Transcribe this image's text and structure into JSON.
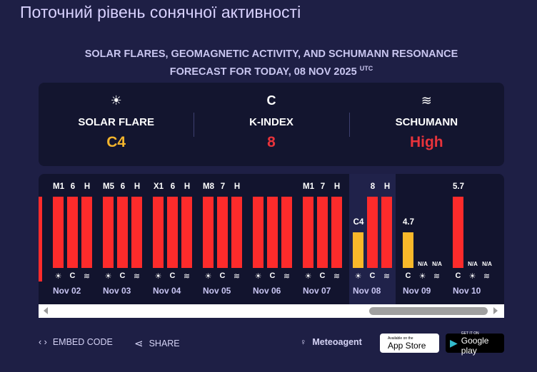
{
  "title": "Поточний рівень сонячної активності",
  "subtitle": {
    "line1": "SOLAR FLARES, GEOMAGNETIC ACTIVITY, AND SCHUMANN RESONANCE",
    "line2": "FORECAST FOR TODAY, 08 NOV 2025",
    "tz": "UTC"
  },
  "summary": [
    {
      "icon": "sun-icon",
      "label": "SOLAR FLARE",
      "value": "C4",
      "color": "#f3b42c"
    },
    {
      "icon": "magnet-icon",
      "label": "K-INDEX",
      "value": "8",
      "color": "#e8333b"
    },
    {
      "icon": "waves-icon",
      "label": "SCHUMANN",
      "value": "High",
      "color": "#e8333b"
    }
  ],
  "colors": {
    "red": "#fd2b2b",
    "yellow": "#f8b82a"
  },
  "days": [
    {
      "date": "Nov 02",
      "bars": [
        {
          "type": "sun",
          "label": "M1",
          "level": 1,
          "color": "red"
        },
        {
          "type": "magnet",
          "label": "6",
          "level": 1,
          "color": "red"
        },
        {
          "type": "waves",
          "label": "H",
          "level": 1,
          "color": "red"
        }
      ]
    },
    {
      "date": "Nov 03",
      "bars": [
        {
          "type": "sun",
          "label": "M5",
          "level": 1,
          "color": "red"
        },
        {
          "type": "magnet",
          "label": "6",
          "level": 1,
          "color": "red"
        },
        {
          "type": "waves",
          "label": "H",
          "level": 1,
          "color": "red"
        }
      ]
    },
    {
      "date": "Nov 04",
      "bars": [
        {
          "type": "sun",
          "label": "X1",
          "level": 1,
          "color": "red"
        },
        {
          "type": "magnet",
          "label": "6",
          "level": 1,
          "color": "red"
        },
        {
          "type": "waves",
          "label": "H",
          "level": 1,
          "color": "red"
        }
      ]
    },
    {
      "date": "Nov 05",
      "bars": [
        {
          "type": "sun",
          "label": "M8",
          "level": 1,
          "color": "red"
        },
        {
          "type": "magnet",
          "label": "7",
          "level": 1,
          "color": "red"
        },
        {
          "type": "waves",
          "label": "H",
          "level": 1,
          "color": "red"
        }
      ]
    },
    {
      "date": "Nov 06",
      "bars": [
        {
          "type": "sun",
          "label": "",
          "level": 1,
          "color": "red"
        },
        {
          "type": "magnet",
          "label": "",
          "level": 1,
          "color": "red"
        },
        {
          "type": "waves",
          "label": "",
          "level": 1,
          "color": "red"
        }
      ]
    },
    {
      "date": "Nov 07",
      "bars": [
        {
          "type": "sun",
          "label": "M1",
          "level": 1,
          "color": "red"
        },
        {
          "type": "magnet",
          "label": "7",
          "level": 1,
          "color": "red"
        },
        {
          "type": "waves",
          "label": "H",
          "level": 1,
          "color": "red"
        }
      ]
    },
    {
      "date": "Nov 08",
      "today": true,
      "bars": [
        {
          "type": "sun",
          "label": "C4",
          "level": 0.5,
          "color": "yellow"
        },
        {
          "type": "magnet",
          "label": "8",
          "level": 1,
          "color": "red"
        },
        {
          "type": "waves",
          "label": "H",
          "level": 1,
          "color": "red"
        }
      ]
    },
    {
      "date": "Nov 09",
      "bars": [
        {
          "type": "magnet",
          "label": "4.7",
          "level": 0.5,
          "color": "yellow"
        },
        {
          "type": "sun",
          "label": "N/A",
          "level": 0,
          "color": "red"
        },
        {
          "type": "waves",
          "label": "N/A",
          "level": 0,
          "color": "red"
        }
      ]
    },
    {
      "date": "Nov 10",
      "bars": [
        {
          "type": "magnet",
          "label": "5.7",
          "level": 1,
          "color": "red"
        },
        {
          "type": "sun",
          "label": "N/A",
          "level": 0,
          "color": "red"
        },
        {
          "type": "waves",
          "label": "N/A",
          "level": 0,
          "color": "red"
        }
      ]
    }
  ],
  "footer": {
    "embed": "EMBED CODE",
    "share": "SHARE",
    "brand": "Meteoagent",
    "appstore_small": "Available on the",
    "appstore": "App Store",
    "gplay_small": "GET IT ON",
    "gplay": "Google play"
  }
}
